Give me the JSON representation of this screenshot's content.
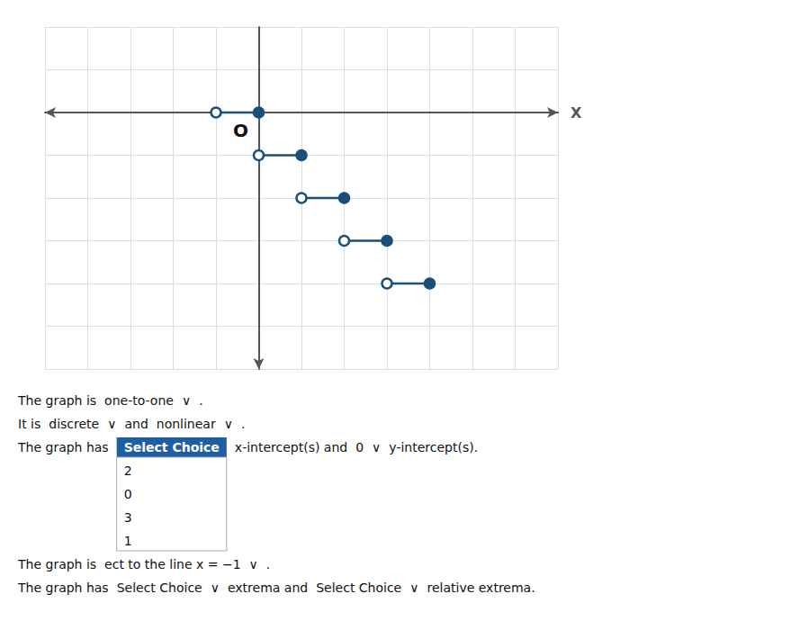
{
  "chart_data": {
    "type": "line",
    "xlabel": "X",
    "annotations": [
      "O"
    ],
    "text_rows": [
      [
        "The graph is",
        "one-to-one",
        "∨",
        "."
      ],
      [
        "It is",
        "discrete",
        "∨",
        "and",
        "nonlinear",
        "∨",
        "."
      ],
      [
        "The graph has",
        [
          "Select Choice",
          "2",
          "0",
          "3",
          "1"
        ],
        "x-intercept(s) and",
        "0",
        "∨",
        "y-intercept(s)."
      ],
      [
        "The graph is",
        "ect to the line x = −1",
        "∨",
        "."
      ],
      [
        "The graph has",
        "Select Choice",
        "∨",
        "extrema and",
        "Select Choice",
        "∨",
        "relative extrema."
      ]
    ],
    "series": [
      {
        "type": "line",
        "x": [
          -1,
          0
        ],
        "values": [
          0,
          0
        ],
        "color": "#1a4f7a"
      },
      {
        "type": "line",
        "x": [
          0,
          1
        ],
        "values": [
          -1,
          -1
        ],
        "color": "#1a4f7a"
      },
      {
        "type": "line",
        "x": [
          1,
          2
        ],
        "values": [
          -2,
          -2
        ],
        "color": "#1a4f7a"
      },
      {
        "type": "line",
        "x": [
          2,
          3
        ],
        "values": [
          -3,
          -3
        ],
        "color": "#1a4f7a"
      },
      {
        "type": "line",
        "x": [
          3,
          4
        ],
        "values": [
          -4,
          -4
        ],
        "color": "#1a4f7a"
      },
      {
        "type": "scatter",
        "marker": "open",
        "x": [
          -1,
          0,
          1,
          2,
          3
        ],
        "values": [
          0,
          -1,
          -2,
          -3,
          -4
        ],
        "color": "#1a4f7a"
      },
      {
        "type": "scatter",
        "marker": "filled",
        "x": [
          0,
          1,
          2,
          3,
          4
        ],
        "values": [
          0,
          -1,
          -2,
          -3,
          -4
        ],
        "color": "#1a4f7a"
      }
    ],
    "xlim": [
      -5,
      7
    ],
    "xticks": [
      -5,
      -4,
      -3,
      -2,
      -1,
      0,
      1,
      2,
      3,
      4,
      5,
      6,
      7
    ],
    "ylim": [
      -6,
      2
    ],
    "yticks": [
      -6,
      -5,
      -4,
      -3,
      -2,
      -1,
      0,
      1,
      2
    ],
    "grid": true,
    "tick_labels": false
  }
}
